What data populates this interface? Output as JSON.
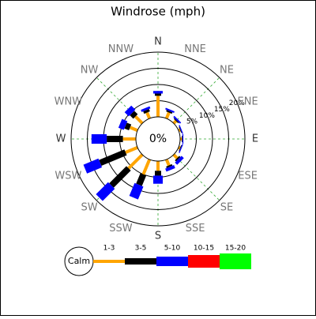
{
  "chart_data": {
    "type": "windrose",
    "title": "Windrose (mph)",
    "categories": [
      "N",
      "NNE",
      "NE",
      "ENE",
      "E",
      "ESE",
      "SE",
      "SSE",
      "S",
      "SSW",
      "SW",
      "WSW",
      "W",
      "WNW",
      "NW",
      "NNW"
    ],
    "series": [
      {
        "name": "1-3",
        "color": "#ffa500",
        "values": [
          6.5,
          2,
          1,
          0.5,
          0.5,
          0.5,
          1.5,
          2,
          3,
          5,
          6,
          4,
          4,
          2.5,
          3,
          2
        ]
      },
      {
        "name": "3-5",
        "color": "#000000",
        "values": [
          0.7,
          0.5,
          0.3,
          0.2,
          0.2,
          0.2,
          0.5,
          0.5,
          1.5,
          3.5,
          7.5,
          8.5,
          5,
          1.5,
          1.5,
          0.8
        ]
      },
      {
        "name": "5-10",
        "color": "#0000ff",
        "values": [
          0.8,
          0.5,
          0.5,
          0.3,
          0.3,
          0.3,
          1,
          1,
          2.5,
          4.3,
          5.3,
          5,
          4.7,
          1.8,
          1.8,
          0.7
        ]
      },
      {
        "name": "10-15",
        "color": "#ff0000",
        "values": [
          0,
          0,
          0,
          0,
          0,
          0,
          0,
          0,
          0,
          0,
          0,
          0,
          0,
          0,
          0,
          0
        ]
      },
      {
        "name": "15-20",
        "color": "#00ff00",
        "values": [
          0,
          0,
          0,
          0,
          0,
          0,
          0,
          0,
          0,
          0,
          0,
          0,
          0,
          0,
          0,
          0
        ]
      }
    ],
    "calm": {
      "value": 0,
      "label": "0%"
    },
    "calm_name": "Calm",
    "rlim": [
      0,
      20
    ],
    "rticks": [
      {
        "value": 5,
        "label": "5%"
      },
      {
        "value": 10,
        "label": "10%"
      },
      {
        "value": 15,
        "label": "15%"
      },
      {
        "value": 20,
        "label": "20%"
      }
    ]
  }
}
